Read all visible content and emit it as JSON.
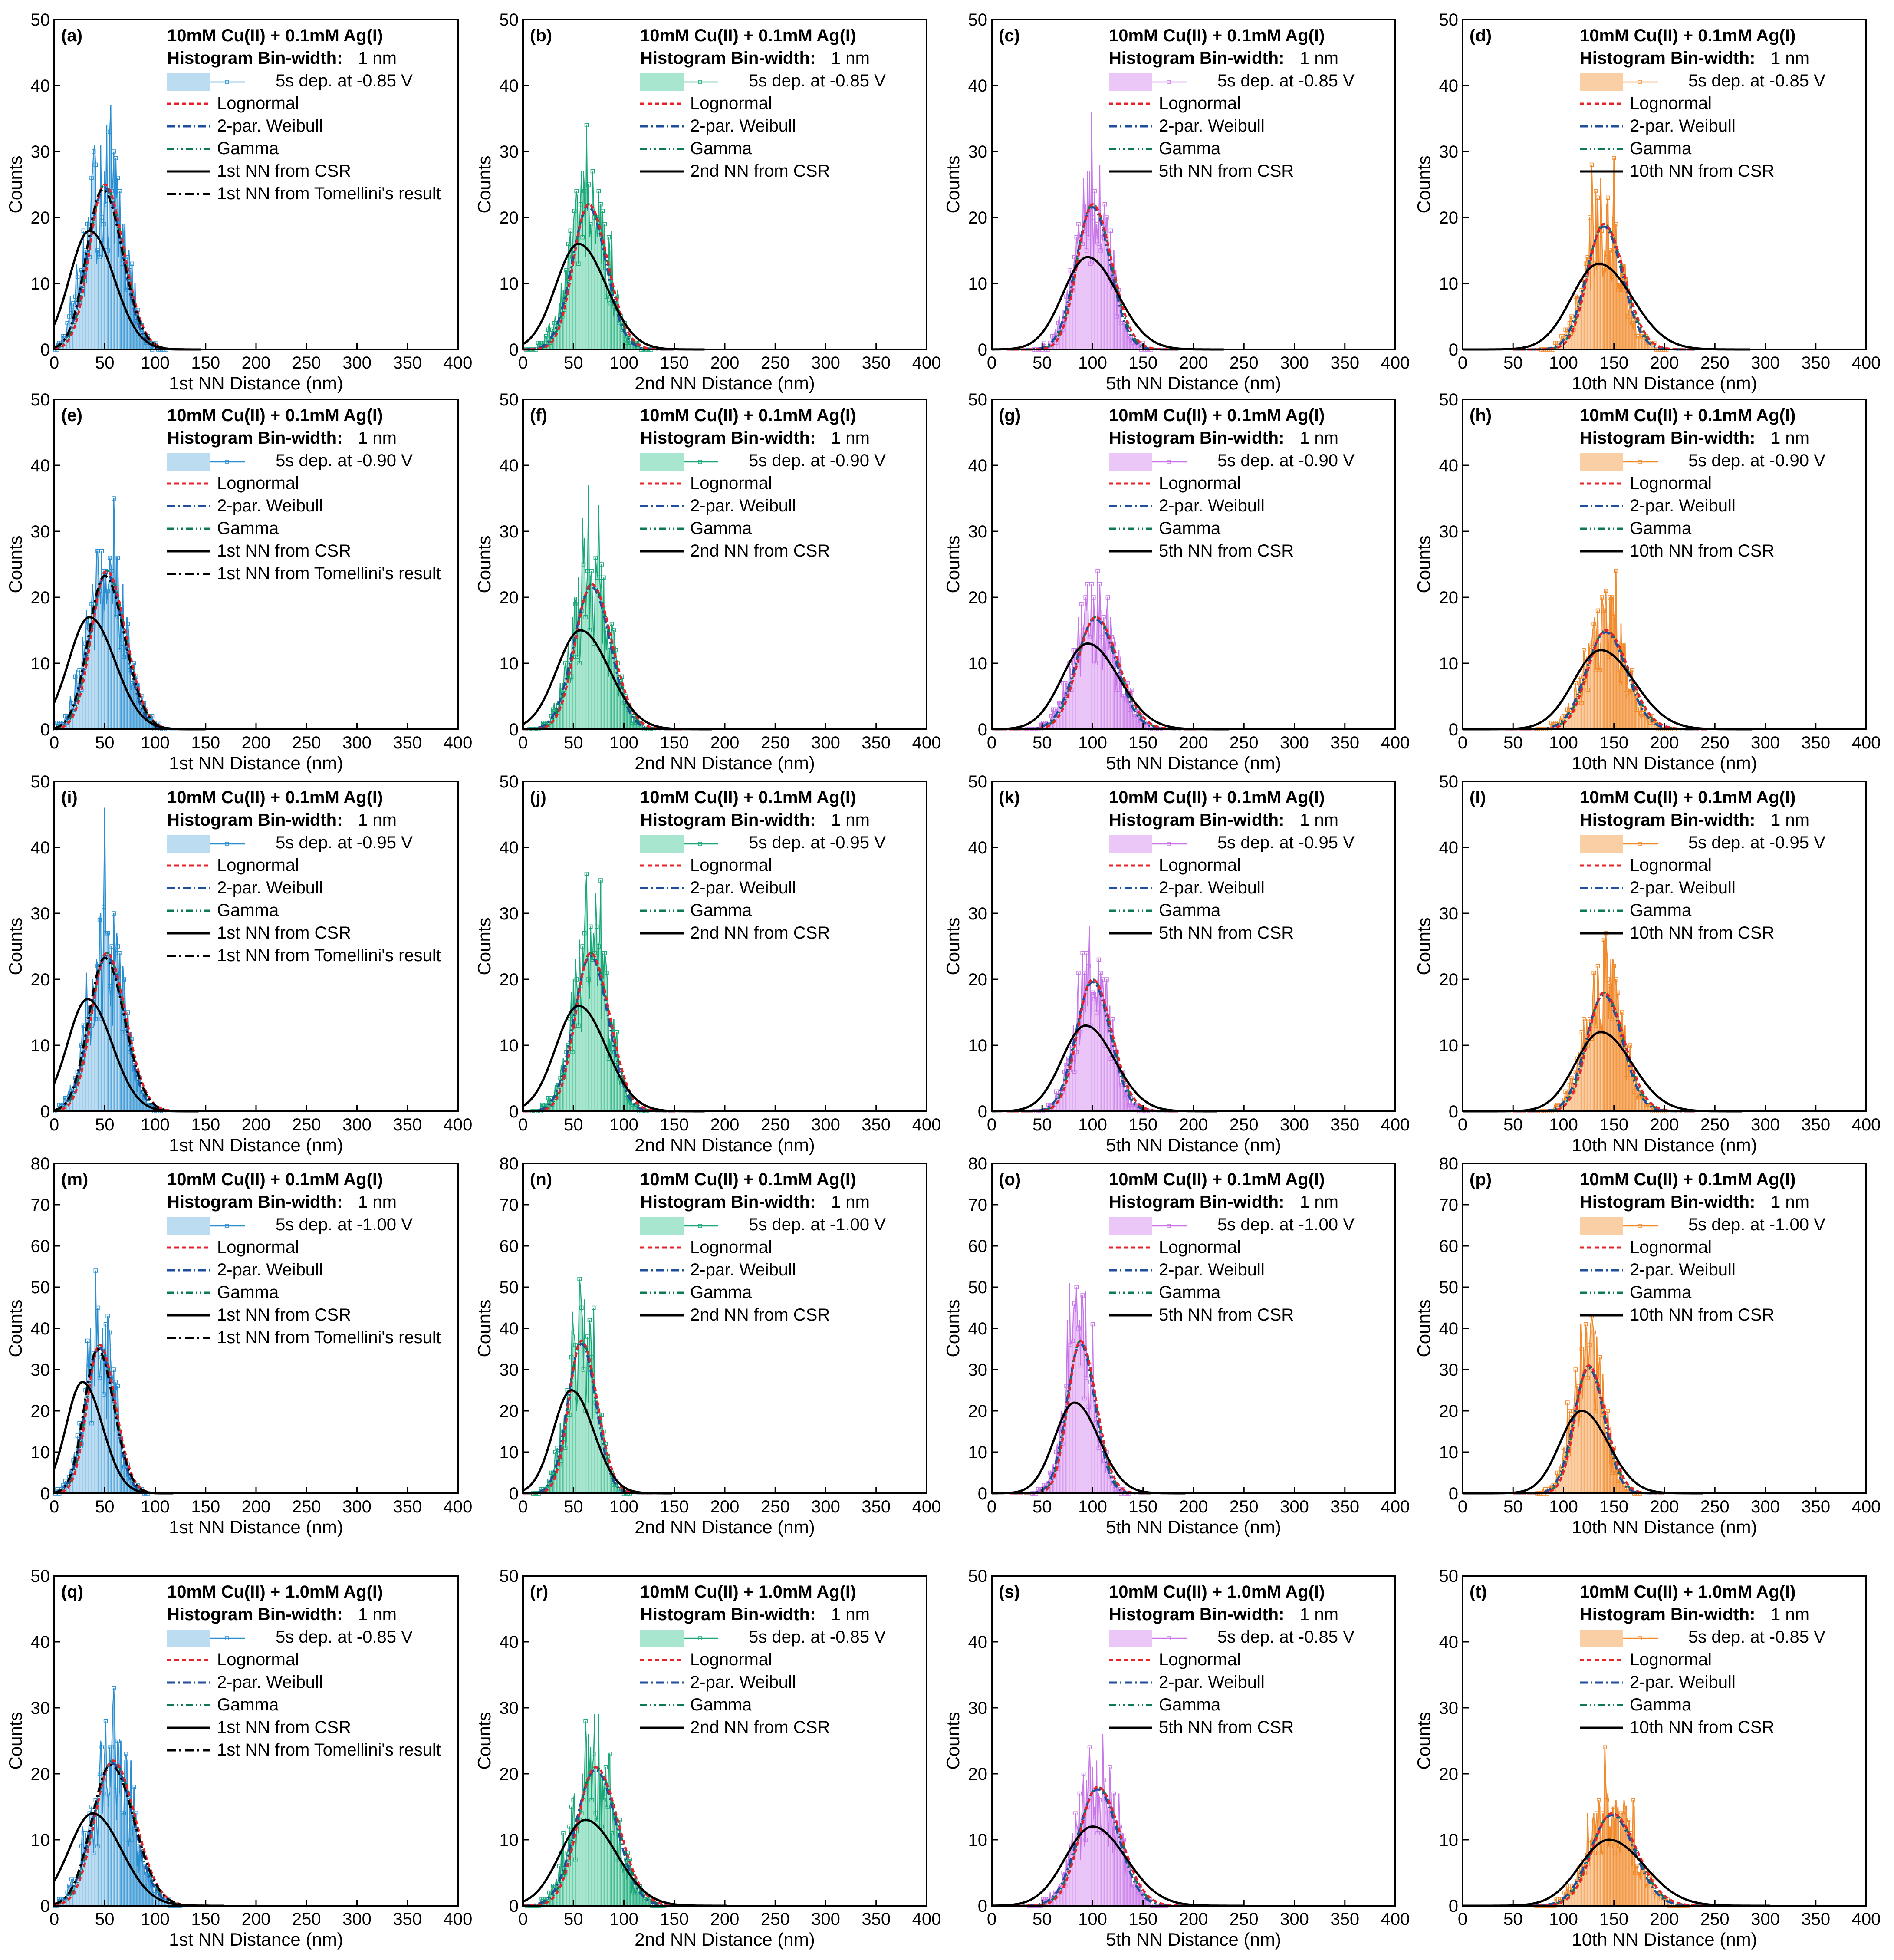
{
  "figure": {
    "axis_ylabel": "Counts",
    "bin_label": "Histogram Bin-width:",
    "bin_value": "1 nm",
    "fit_labels": [
      "Lognormal",
      "2-par. Weibull",
      "Gamma"
    ],
    "tomellini_label": "1st NN from Tomellini's result",
    "colors": {
      "lognormal": "#e8212a",
      "weibull": "#1f4e9c",
      "gamma": "#0e7a52",
      "csr": "#000000",
      "col1": "#2a8fd0",
      "col1_fill": "#bcdcf2",
      "col2": "#1aa878",
      "col2_fill": "#a9e6cf",
      "col3": "#c777e8",
      "col3_fill": "#ebc7f8",
      "col4": "#f08a2c",
      "col4_fill": "#fbcfa6"
    }
  },
  "chart_data": [
    {
      "type": "bar",
      "panel": "(a)",
      "title": "10mM Cu(II) + 0.1mM Ag(I)",
      "series_label": "5s dep. at -0.85 V",
      "csr_label": "1st NN from CSR",
      "xlabel": "1st NN Distance (nm)",
      "ylabel": "Counts",
      "xlim": [
        0,
        400
      ],
      "ylim": [
        0,
        50
      ],
      "xticks": [
        0,
        50,
        100,
        150,
        200,
        250,
        300,
        350,
        400
      ],
      "yticks": [
        0,
        10,
        20,
        30,
        40,
        50
      ],
      "hist": {
        "mean": 50,
        "sd": 18,
        "peak": 25,
        "max_bar": 37
      },
      "fit_peak": 25,
      "fit_mean": 50,
      "fit_sd": 17,
      "csr": {
        "mean": 35,
        "sd": 22,
        "peak": 18
      },
      "tomellini": true
    },
    {
      "type": "bar",
      "panel": "(b)",
      "title": "10mM Cu(II) + 0.1mM Ag(I)",
      "series_label": "5s dep. at -0.85 V",
      "csr_label": "2nd NN from CSR",
      "xlabel": "2nd NN Distance (nm)",
      "ylabel": "Counts",
      "xlim": [
        0,
        400
      ],
      "ylim": [
        0,
        50
      ],
      "xticks": [
        0,
        50,
        100,
        150,
        200,
        250,
        300,
        350,
        400
      ],
      "yticks": [
        0,
        10,
        20,
        30,
        40,
        50
      ],
      "hist": {
        "mean": 65,
        "sd": 18,
        "peak": 22,
        "max_bar": 34
      },
      "fit_peak": 22,
      "fit_mean": 65,
      "fit_sd": 17,
      "csr": {
        "mean": 55,
        "sd": 25,
        "peak": 16
      },
      "tomellini": false
    },
    {
      "type": "bar",
      "panel": "(c)",
      "title": "10mM Cu(II) + 0.1mM Ag(I)",
      "series_label": "5s dep. at -0.85 V",
      "csr_label": "5th NN from CSR",
      "xlabel": "5th NN Distance (nm)",
      "ylabel": "Counts",
      "xlim": [
        0,
        400
      ],
      "ylim": [
        0,
        50
      ],
      "xticks": [
        0,
        50,
        100,
        150,
        200,
        250,
        300,
        350,
        400
      ],
      "yticks": [
        0,
        10,
        20,
        30,
        40,
        50
      ],
      "hist": {
        "mean": 100,
        "sd": 17,
        "peak": 22,
        "max_bar": 36
      },
      "fit_peak": 22,
      "fit_mean": 100,
      "fit_sd": 17,
      "csr": {
        "mean": 95,
        "sd": 27,
        "peak": 14
      },
      "tomellini": false
    },
    {
      "type": "bar",
      "panel": "(d)",
      "title": "10mM Cu(II) + 0.1mM Ag(I)",
      "series_label": "5s dep. at -0.85 V",
      "csr_label": "10th NN from CSR",
      "xlabel": "10th NN Distance (nm)",
      "ylabel": "Counts",
      "xlim": [
        0,
        400
      ],
      "ylim": [
        0,
        50
      ],
      "xticks": [
        0,
        50,
        100,
        150,
        200,
        250,
        300,
        350,
        400
      ],
      "yticks": [
        0,
        10,
        20,
        30,
        40,
        50
      ],
      "hist": {
        "mean": 140,
        "sd": 18,
        "peak": 19,
        "max_bar": 29
      },
      "fit_peak": 19,
      "fit_mean": 140,
      "fit_sd": 18,
      "csr": {
        "mean": 135,
        "sd": 30,
        "peak": 13
      },
      "tomellini": false
    },
    {
      "type": "bar",
      "panel": "(e)",
      "title": "10mM Cu(II) + 0.1mM Ag(I)",
      "series_label": "5s dep. at -0.90 V",
      "csr_label": "1st NN from CSR",
      "xlabel": "1st NN Distance (nm)",
      "ylabel": "Counts",
      "xlim": [
        0,
        400
      ],
      "ylim": [
        0,
        50
      ],
      "xticks": [
        0,
        50,
        100,
        150,
        200,
        250,
        300,
        350,
        400
      ],
      "yticks": [
        0,
        10,
        20,
        30,
        40,
        50
      ],
      "hist": {
        "mean": 52,
        "sd": 18,
        "peak": 24,
        "max_bar": 35
      },
      "fit_peak": 24,
      "fit_mean": 52,
      "fit_sd": 17,
      "csr": {
        "mean": 35,
        "sd": 23,
        "peak": 17
      },
      "tomellini": true
    },
    {
      "type": "bar",
      "panel": "(f)",
      "title": "10mM Cu(II) + 0.1mM Ag(I)",
      "series_label": "5s dep. at -0.90 V",
      "csr_label": "2nd NN from CSR",
      "xlabel": "2nd NN Distance (nm)",
      "ylabel": "Counts",
      "xlim": [
        0,
        400
      ],
      "ylim": [
        0,
        50
      ],
      "xticks": [
        0,
        50,
        100,
        150,
        200,
        250,
        300,
        350,
        400
      ],
      "yticks": [
        0,
        10,
        20,
        30,
        40,
        50
      ],
      "hist": {
        "mean": 68,
        "sd": 18,
        "peak": 22,
        "max_bar": 37
      },
      "fit_peak": 22,
      "fit_mean": 68,
      "fit_sd": 18,
      "csr": {
        "mean": 57,
        "sd": 26,
        "peak": 15
      },
      "tomellini": false
    },
    {
      "type": "bar",
      "panel": "(g)",
      "title": "10mM Cu(II) + 0.1mM Ag(I)",
      "series_label": "5s dep. at -0.90 V",
      "csr_label": "5th NN from CSR",
      "xlabel": "5th NN Distance (nm)",
      "ylabel": "Counts",
      "xlim": [
        0,
        400
      ],
      "ylim": [
        0,
        50
      ],
      "xticks": [
        0,
        50,
        100,
        150,
        200,
        250,
        300,
        350,
        400
      ],
      "yticks": [
        0,
        10,
        20,
        30,
        40,
        50
      ],
      "hist": {
        "mean": 103,
        "sd": 20,
        "peak": 17,
        "max_bar": 22
      },
      "fit_peak": 17,
      "fit_mean": 103,
      "fit_sd": 20,
      "csr": {
        "mean": 95,
        "sd": 28,
        "peak": 13
      },
      "tomellini": false
    },
    {
      "type": "bar",
      "panel": "(h)",
      "title": "10mM Cu(II) + 0.1mM Ag(I)",
      "series_label": "5s dep. at -0.90 V",
      "csr_label": "10th NN from CSR",
      "xlabel": "10th NN Distance (nm)",
      "ylabel": "Counts",
      "xlim": [
        0,
        400
      ],
      "ylim": [
        0,
        50
      ],
      "xticks": [
        0,
        50,
        100,
        150,
        200,
        250,
        300,
        350,
        400
      ],
      "yticks": [
        0,
        10,
        20,
        30,
        40,
        50
      ],
      "hist": {
        "mean": 142,
        "sd": 20,
        "peak": 15,
        "max_bar": 20
      },
      "fit_peak": 15,
      "fit_mean": 142,
      "fit_sd": 20,
      "csr": {
        "mean": 137,
        "sd": 30,
        "peak": 12
      },
      "tomellini": false
    },
    {
      "type": "bar",
      "panel": "(i)",
      "title": "10mM Cu(II) + 0.1mM Ag(I)",
      "series_label": "5s dep. at -0.95 V",
      "csr_label": "1st NN from CSR",
      "xlabel": "1st NN Distance (nm)",
      "ylabel": "Counts",
      "xlim": [
        0,
        400
      ],
      "ylim": [
        0,
        50
      ],
      "xticks": [
        0,
        50,
        100,
        150,
        200,
        250,
        300,
        350,
        400
      ],
      "yticks": [
        0,
        10,
        20,
        30,
        40,
        50
      ],
      "hist": {
        "mean": 52,
        "sd": 17,
        "peak": 24,
        "max_bar": 46
      },
      "fit_peak": 24,
      "fit_mean": 52,
      "fit_sd": 17,
      "csr": {
        "mean": 33,
        "sd": 22,
        "peak": 17
      },
      "tomellini": true
    },
    {
      "type": "bar",
      "panel": "(j)",
      "title": "10mM Cu(II) + 0.1mM Ag(I)",
      "series_label": "5s dep. at -0.95 V",
      "csr_label": "2nd NN from CSR",
      "xlabel": "2nd NN Distance (nm)",
      "ylabel": "Counts",
      "xlim": [
        0,
        400
      ],
      "ylim": [
        0,
        50
      ],
      "xticks": [
        0,
        50,
        100,
        150,
        200,
        250,
        300,
        350,
        400
      ],
      "yticks": [
        0,
        10,
        20,
        30,
        40,
        50
      ],
      "hist": {
        "mean": 67,
        "sd": 17,
        "peak": 24,
        "max_bar": 36
      },
      "fit_peak": 24,
      "fit_mean": 67,
      "fit_sd": 17,
      "csr": {
        "mean": 55,
        "sd": 25,
        "peak": 16
      },
      "tomellini": false
    },
    {
      "type": "bar",
      "panel": "(k)",
      "title": "10mM Cu(II) + 0.1mM Ag(I)",
      "series_label": "5s dep. at -0.95 V",
      "csr_label": "5th NN from CSR",
      "xlabel": "5th NN Distance (nm)",
      "ylabel": "Counts",
      "xlim": [
        0,
        400
      ],
      "ylim": [
        0,
        50
      ],
      "xticks": [
        0,
        50,
        100,
        150,
        200,
        250,
        300,
        350,
        400
      ],
      "yticks": [
        0,
        10,
        20,
        30,
        40,
        50
      ],
      "hist": {
        "mean": 100,
        "sd": 17,
        "peak": 20,
        "max_bar": 28
      },
      "fit_peak": 20,
      "fit_mean": 100,
      "fit_sd": 17,
      "csr": {
        "mean": 93,
        "sd": 26,
        "peak": 13
      },
      "tomellini": false
    },
    {
      "type": "bar",
      "panel": "(l)",
      "title": "10mM Cu(II) + 0.1mM Ag(I)",
      "series_label": "5s dep. at -0.95 V",
      "csr_label": "10th NN from CSR",
      "xlabel": "10th NN Distance (nm)",
      "ylabel": "Counts",
      "xlim": [
        0,
        400
      ],
      "ylim": [
        0,
        50
      ],
      "xticks": [
        0,
        50,
        100,
        150,
        200,
        250,
        300,
        350,
        400
      ],
      "yticks": [
        0,
        10,
        20,
        30,
        40,
        50
      ],
      "hist": {
        "mean": 140,
        "sd": 18,
        "peak": 18,
        "max_bar": 27
      },
      "fit_peak": 18,
      "fit_mean": 140,
      "fit_sd": 18,
      "csr": {
        "mean": 137,
        "sd": 28,
        "peak": 12
      },
      "tomellini": false
    },
    {
      "type": "bar",
      "panel": "(m)",
      "title": "10mM Cu(II) + 0.1mM Ag(I)",
      "series_label": "5s dep. at -1.00 V",
      "csr_label": "1st NN from CSR",
      "xlabel": "1st NN Distance (nm)",
      "ylabel": "Counts",
      "xlim": [
        0,
        400
      ],
      "ylim": [
        0,
        80
      ],
      "xticks": [
        0,
        50,
        100,
        150,
        200,
        250,
        300,
        350,
        400
      ],
      "yticks": [
        0,
        10,
        20,
        30,
        40,
        50,
        60,
        70,
        80
      ],
      "hist": {
        "mean": 45,
        "sd": 14,
        "peak": 36,
        "max_bar": 54
      },
      "fit_peak": 36,
      "fit_mean": 45,
      "fit_sd": 14,
      "csr": {
        "mean": 28,
        "sd": 18,
        "peak": 27
      },
      "tomellini": true
    },
    {
      "type": "bar",
      "panel": "(n)",
      "title": "10mM Cu(II) + 0.1mM Ag(I)",
      "series_label": "5s dep. at -1.00 V",
      "csr_label": "2nd NN from CSR",
      "xlabel": "2nd NN Distance (nm)",
      "ylabel": "Counts",
      "xlim": [
        0,
        400
      ],
      "ylim": [
        0,
        80
      ],
      "xticks": [
        0,
        50,
        100,
        150,
        200,
        250,
        300,
        350,
        400
      ],
      "yticks": [
        0,
        10,
        20,
        30,
        40,
        50,
        60,
        70,
        80
      ],
      "hist": {
        "mean": 58,
        "sd": 14,
        "peak": 37,
        "max_bar": 52
      },
      "fit_peak": 37,
      "fit_mean": 58,
      "fit_sd": 14,
      "csr": {
        "mean": 48,
        "sd": 20,
        "peak": 25
      },
      "tomellini": false
    },
    {
      "type": "bar",
      "panel": "(o)",
      "title": "10mM Cu(II) + 0.1mM Ag(I)",
      "series_label": "5s dep. at -1.00 V",
      "csr_label": "5th NN from CSR",
      "xlabel": "5th NN Distance (nm)",
      "ylabel": "Counts",
      "xlim": [
        0,
        400
      ],
      "ylim": [
        0,
        80
      ],
      "xticks": [
        0,
        50,
        100,
        150,
        200,
        250,
        300,
        350,
        400
      ],
      "yticks": [
        0,
        10,
        20,
        30,
        40,
        50,
        60,
        70,
        80
      ],
      "hist": {
        "mean": 88,
        "sd": 14,
        "peak": 37,
        "max_bar": 49
      },
      "fit_peak": 37,
      "fit_mean": 88,
      "fit_sd": 14,
      "csr": {
        "mean": 82,
        "sd": 22,
        "peak": 22
      },
      "tomellini": false
    },
    {
      "type": "bar",
      "panel": "(p)",
      "title": "10mM Cu(II) + 0.1mM Ag(I)",
      "series_label": "5s dep. at -1.00 V",
      "csr_label": "10th NN from CSR",
      "xlabel": "10th NN Distance (nm)",
      "ylabel": "Counts",
      "xlim": [
        0,
        400
      ],
      "ylim": [
        0,
        80
      ],
      "xticks": [
        0,
        50,
        100,
        150,
        200,
        250,
        300,
        350,
        400
      ],
      "yticks": [
        0,
        10,
        20,
        30,
        40,
        50,
        60,
        70,
        80
      ],
      "hist": {
        "mean": 125,
        "sd": 15,
        "peak": 31,
        "max_bar": 39
      },
      "fit_peak": 31,
      "fit_mean": 125,
      "fit_sd": 15,
      "csr": {
        "mean": 118,
        "sd": 24,
        "peak": 20
      },
      "tomellini": false
    },
    {
      "type": "bar",
      "panel": "(q)",
      "title": "10mM Cu(II) + 1.0mM Ag(I)",
      "series_label": "5s dep. at -0.85 V",
      "csr_label": "1st NN from CSR",
      "xlabel": "1st NN Distance (nm)",
      "ylabel": "Counts",
      "xlim": [
        0,
        400
      ],
      "ylim": [
        0,
        50
      ],
      "xticks": [
        0,
        50,
        100,
        150,
        200,
        250,
        300,
        350,
        400
      ],
      "yticks": [
        0,
        10,
        20,
        30,
        40,
        50
      ],
      "hist": {
        "mean": 58,
        "sd": 20,
        "peak": 22,
        "max_bar": 33
      },
      "fit_peak": 22,
      "fit_mean": 58,
      "fit_sd": 20,
      "csr": {
        "mean": 38,
        "sd": 26,
        "peak": 14
      },
      "tomellini": true
    },
    {
      "type": "bar",
      "panel": "(r)",
      "title": "10mM Cu(II) + 1.0mM Ag(I)",
      "series_label": "5s dep. at -0.85 V",
      "csr_label": "2nd NN from CSR",
      "xlabel": "2nd NN Distance (nm)",
      "ylabel": "Counts",
      "xlim": [
        0,
        400
      ],
      "ylim": [
        0,
        50
      ],
      "xticks": [
        0,
        50,
        100,
        150,
        200,
        250,
        300,
        350,
        400
      ],
      "yticks": [
        0,
        10,
        20,
        30,
        40,
        50
      ],
      "hist": {
        "mean": 72,
        "sd": 20,
        "peak": 21,
        "max_bar": 28
      },
      "fit_peak": 21,
      "fit_mean": 72,
      "fit_sd": 20,
      "csr": {
        "mean": 62,
        "sd": 28,
        "peak": 13
      },
      "tomellini": false
    },
    {
      "type": "bar",
      "panel": "(s)",
      "title": "10mM Cu(II) + 1.0mM Ag(I)",
      "series_label": "5s dep. at -0.85 V",
      "csr_label": "5th NN from CSR",
      "xlabel": "5th NN Distance (nm)",
      "ylabel": "Counts",
      "xlim": [
        0,
        400
      ],
      "ylim": [
        0,
        50
      ],
      "xticks": [
        0,
        50,
        100,
        150,
        200,
        250,
        300,
        350,
        400
      ],
      "yticks": [
        0,
        10,
        20,
        30,
        40,
        50
      ],
      "hist": {
        "mean": 105,
        "sd": 20,
        "peak": 18,
        "max_bar": 26
      },
      "fit_peak": 18,
      "fit_mean": 105,
      "fit_sd": 20,
      "csr": {
        "mean": 100,
        "sd": 30,
        "peak": 12
      },
      "tomellini": false
    },
    {
      "type": "bar",
      "panel": "(t)",
      "title": "10mM Cu(II) + 1.0mM Ag(I)",
      "series_label": "5s dep. at -0.85 V",
      "csr_label": "10th NN from CSR",
      "xlabel": "10th NN Distance (nm)",
      "ylabel": "Counts",
      "xlim": [
        0,
        400
      ],
      "ylim": [
        0,
        50
      ],
      "xticks": [
        0,
        50,
        100,
        150,
        200,
        250,
        300,
        350,
        400
      ],
      "yticks": [
        0,
        10,
        20,
        30,
        40,
        50
      ],
      "hist": {
        "mean": 148,
        "sd": 22,
        "peak": 14,
        "max_bar": 24
      },
      "fit_peak": 14,
      "fit_mean": 148,
      "fit_sd": 22,
      "csr": {
        "mean": 145,
        "sd": 32,
        "peak": 10
      },
      "tomellini": false
    }
  ]
}
